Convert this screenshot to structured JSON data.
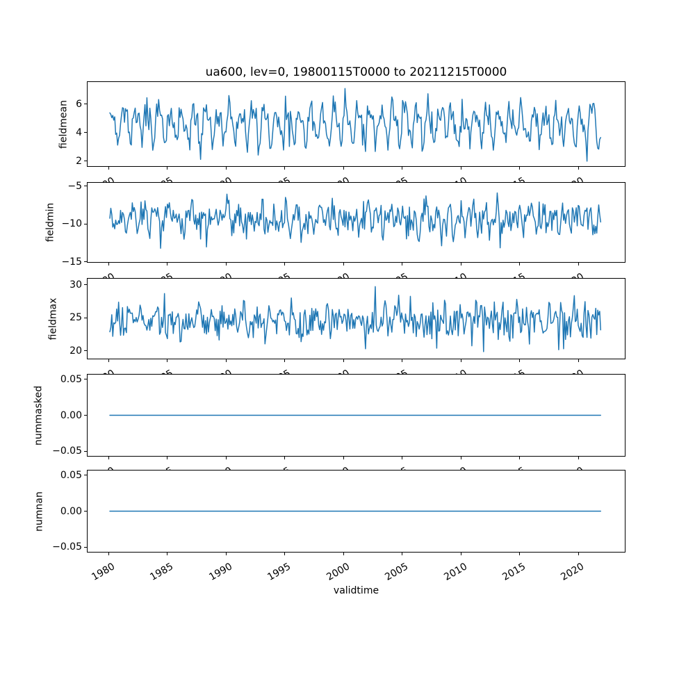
{
  "title": "ua600, lev=0, 19800115T0000 to 20211215T0000",
  "x_axis": {
    "label": "validtime",
    "xlim": [
      1978.14,
      2024.02
    ],
    "tick_values": [
      1980,
      1985,
      1990,
      1995,
      2000,
      2005,
      2010,
      2015,
      2020
    ],
    "tick_labels": [
      "1980",
      "1985",
      "1990",
      "1995",
      "2000",
      "2005",
      "2010",
      "2015",
      "2020"
    ],
    "tick_rotation_deg": 30
  },
  "style": {
    "line_color": "#1f77b4",
    "axis_color": "#000000",
    "text_color": "#000000",
    "background": "#ffffff"
  },
  "chart_data": [
    {
      "type": "line",
      "name": "fieldmean",
      "ylabel": "fieldmean",
      "ylim": [
        1.6,
        7.6
      ],
      "ytick_values": [
        2,
        4,
        6
      ],
      "ytick_labels": [
        "2",
        "4",
        "6"
      ],
      "x_start": 1980.0417,
      "x_end": 2021.9583,
      "n_points": 504,
      "approx_value_range": [
        1.95,
        7.3
      ],
      "series_model": {
        "kind": "seasonal_noise",
        "base": 4.6,
        "annual_amp": 1.05,
        "annual_phase": 0.3,
        "semiannual_amp": 0.45,
        "semiannual_phase": 1.2,
        "noise_sd": 0.5,
        "clip": [
          1.95,
          7.3
        ],
        "seed": 7
      }
    },
    {
      "type": "line",
      "name": "fieldmin",
      "ylabel": "fieldmin",
      "ylim": [
        -15.1,
        -4.45
      ],
      "ytick_values": [
        -5,
        -10,
        -15
      ],
      "ytick_labels": [
        "−5",
        "−10",
        "−15"
      ],
      "x_start": 1980.0417,
      "x_end": 2021.9583,
      "n_points": 504,
      "approx_value_range": [
        -14.55,
        -4.55
      ],
      "series_model": {
        "kind": "seasonal_noise",
        "base": -9.4,
        "annual_amp": 0.9,
        "annual_phase": 2.1,
        "semiannual_amp": 0.7,
        "semiannual_phase": 0.4,
        "noise_sd": 1.05,
        "clip": [
          -14.55,
          -4.55
        ],
        "seed": 13
      }
    },
    {
      "type": "line",
      "name": "fieldmax",
      "ylabel": "fieldmax",
      "ylim": [
        18.7,
        31.05
      ],
      "ytick_values": [
        30,
        25,
        20
      ],
      "ytick_labels": [
        "30",
        "25",
        "20"
      ],
      "x_start": 1980.0417,
      "x_end": 2021.9583,
      "n_points": 504,
      "approx_value_range": [
        19.2,
        30.3
      ],
      "series_model": {
        "kind": "seasonal_noise",
        "base": 24.6,
        "annual_amp": 0.7,
        "annual_phase": 4.0,
        "semiannual_amp": 0.5,
        "semiannual_phase": 0.6,
        "noise_sd": 1.5,
        "clip": [
          19.2,
          30.3
        ],
        "seed": 21
      }
    },
    {
      "type": "line",
      "name": "nummasked",
      "ylabel": "nummasked",
      "ylim": [
        -0.0575,
        0.0575
      ],
      "ytick_values": [
        0.05,
        0,
        -0.05
      ],
      "ytick_labels": [
        "0.05",
        "0.00",
        "−0.05"
      ],
      "x_start": 1980.0417,
      "x_end": 2021.9583,
      "n_points": 504,
      "approx_value_range": [
        0,
        0
      ],
      "series_model": {
        "kind": "constant",
        "value": 0
      }
    },
    {
      "type": "line",
      "name": "numnan",
      "ylabel": "numnan",
      "ylim": [
        -0.0575,
        0.0575
      ],
      "ytick_values": [
        0.05,
        0,
        -0.05
      ],
      "ytick_labels": [
        "0.05",
        "0.00",
        "−0.05"
      ],
      "x_start": 1980.0417,
      "x_end": 2021.9583,
      "n_points": 504,
      "approx_value_range": [
        0,
        0
      ],
      "series_model": {
        "kind": "constant",
        "value": 0
      }
    }
  ]
}
